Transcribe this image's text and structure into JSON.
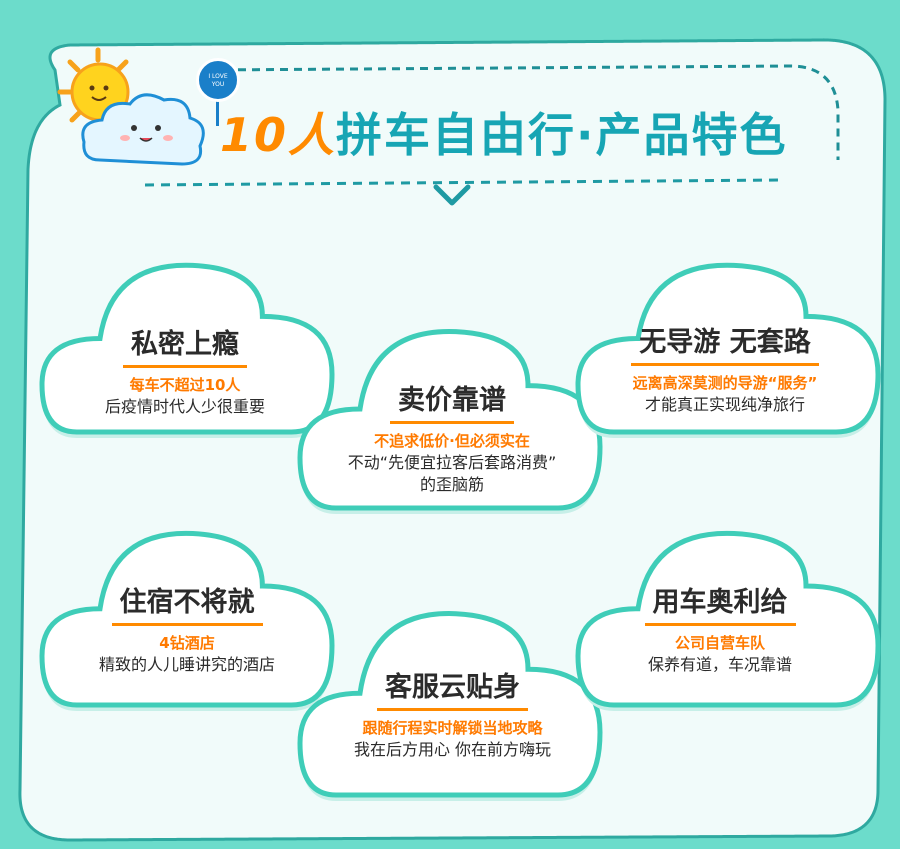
{
  "header": {
    "title_number": "10人",
    "title_rest": "拼车自由行·产品特色",
    "badge_line1": "I LOVE",
    "badge_line2": "YOU"
  },
  "colors": {
    "background": "#6cdccb",
    "board": "#f1fbfa",
    "teal_text": "#17a5b4",
    "orange": "#ff7a00",
    "cloud_stroke": "#3fcdb8"
  },
  "features": [
    {
      "title": "私密上瘾",
      "highlight": "每车不超过10人",
      "desc": [
        "后疫情时代人少很重要"
      ]
    },
    {
      "title": "卖价靠谱",
      "highlight": "不追求低价·但必须实在",
      "desc": [
        "不动“先便宜拉客后套路消费”",
        "的歪脑筋"
      ]
    },
    {
      "title": "无导游 无套路",
      "highlight": "远离高深莫测的导游“服务”",
      "desc": [
        "才能真正实现纯净旅行"
      ]
    },
    {
      "title": "住宿不将就",
      "highlight": "4钻酒店",
      "desc": [
        "精致的人儿睡讲究的酒店"
      ]
    },
    {
      "title": "客服云贴身",
      "highlight": "跟随行程实时解锁当地攻略",
      "desc": [
        "我在后方用心 你在前方嗨玩"
      ]
    },
    {
      "title": "用车奥利给",
      "highlight": "公司自营车队",
      "desc": [
        "保养有道，车况靠谱"
      ]
    }
  ]
}
